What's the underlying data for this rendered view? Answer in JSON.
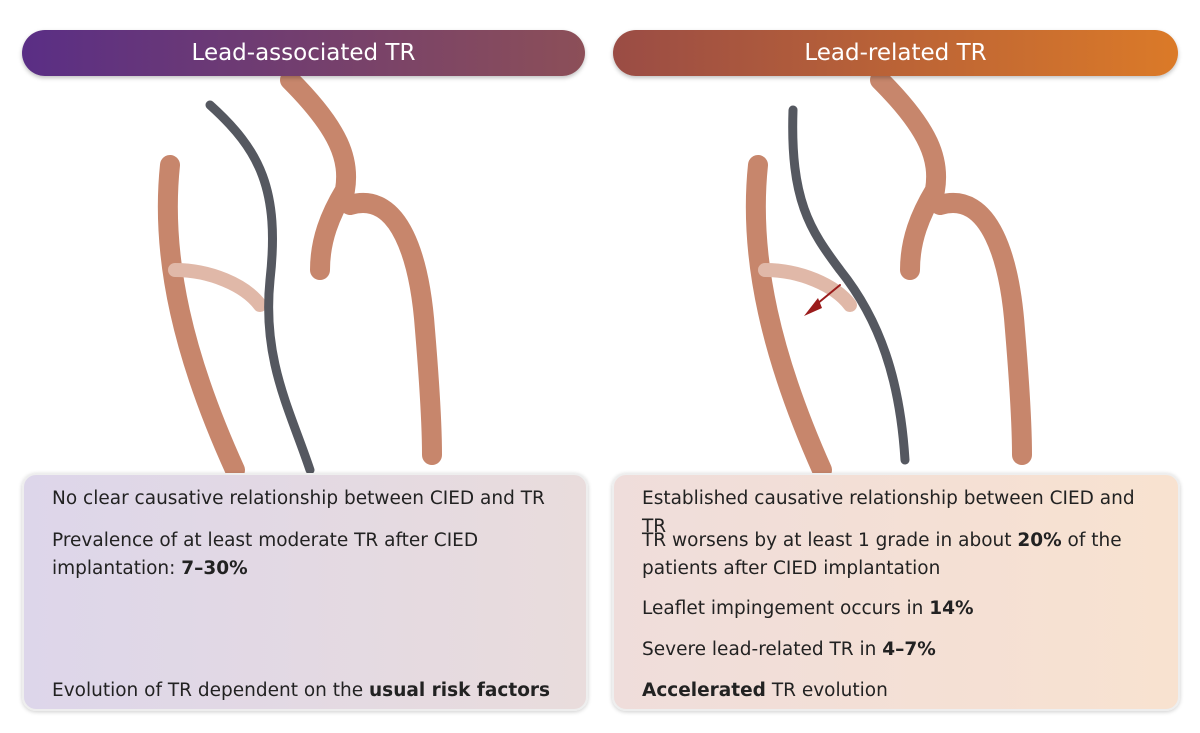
{
  "panels": [
    {
      "title": "Lead-associated TR",
      "bullets": [
        [
          {
            "text": "No clear causative relationship between CIED and TR"
          }
        ],
        [
          {
            "text": "Prevalence of at least moderate TR after CIED implantation: "
          },
          {
            "text": "7–30%",
            "bold": true
          }
        ],
        [
          {
            "text": "Evolution of TR dependent on the "
          },
          {
            "text": "usual risk factors",
            "bold": true
          }
        ]
      ]
    },
    {
      "title": "Lead-related TR",
      "bullets": [
        [
          {
            "text": "Established causative relationship between CIED and TR"
          }
        ],
        [
          {
            "text": "TR worsens by at least 1 grade in about "
          },
          {
            "text": "20%",
            "bold": true
          },
          {
            "text": " of the patients after CIED implantation"
          }
        ],
        [
          {
            "text": "Leaflet impingement occurs in "
          },
          {
            "text": "14%",
            "bold": true
          }
        ],
        [
          {
            "text": "Severe lead-related TR in "
          },
          {
            "text": "4–7%",
            "bold": true
          }
        ],
        [
          {
            "text": "Accelerated",
            "bold": true
          },
          {
            "text": " TR evolution"
          }
        ]
      ]
    }
  ]
}
